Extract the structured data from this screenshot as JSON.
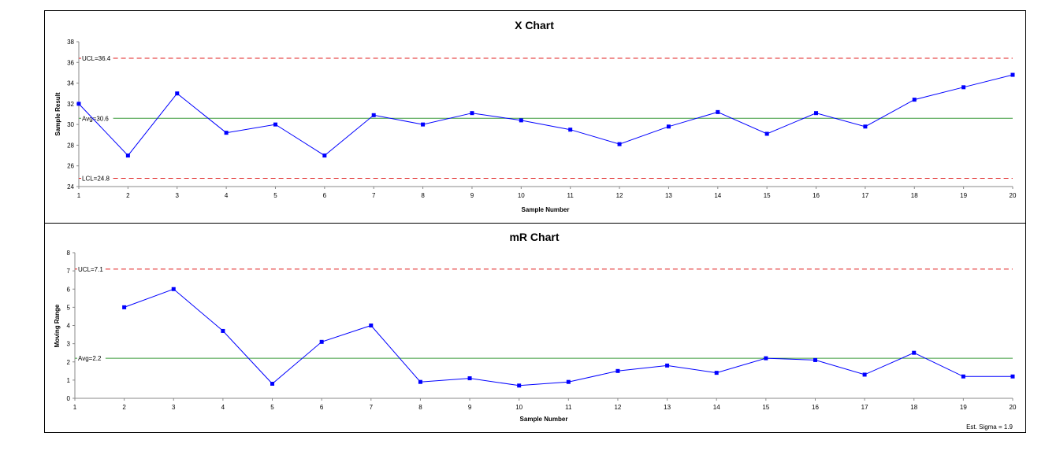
{
  "chart_data": [
    {
      "type": "line",
      "title": "X Chart",
      "xlabel": "Sample Number",
      "ylabel": "Sample Result",
      "x": [
        1,
        2,
        3,
        4,
        5,
        6,
        7,
        8,
        9,
        10,
        11,
        12,
        13,
        14,
        15,
        16,
        17,
        18,
        19,
        20
      ],
      "series": [
        {
          "values": [
            32.0,
            27.0,
            33.0,
            29.2,
            30.0,
            27.0,
            30.9,
            30.0,
            31.1,
            30.4,
            29.5,
            28.1,
            29.8,
            31.2,
            29.1,
            31.1,
            29.8,
            32.4,
            33.6,
            34.8
          ]
        }
      ],
      "ylim": [
        24,
        38
      ],
      "yticks": [
        24,
        26,
        28,
        30,
        32,
        34,
        36,
        38
      ],
      "xticks": [
        1,
        2,
        3,
        4,
        5,
        6,
        7,
        8,
        9,
        10,
        11,
        12,
        13,
        14,
        15,
        16,
        17,
        18,
        19,
        20
      ],
      "reference_lines": [
        {
          "label": "UCL=36.4",
          "value": 36.4,
          "style": "dashed",
          "color": "#e02020"
        },
        {
          "label": "Avg=30.6",
          "value": 30.6,
          "style": "solid",
          "color": "#3a9a3a"
        },
        {
          "label": "LCL=24.8",
          "value": 24.8,
          "style": "dashed",
          "color": "#e02020"
        }
      ],
      "series_color": "#0000ff",
      "grid": false
    },
    {
      "type": "line",
      "title": "mR Chart",
      "xlabel": "Sample Number",
      "ylabel": "Moving Range",
      "x": [
        2,
        3,
        4,
        5,
        6,
        7,
        8,
        9,
        10,
        11,
        12,
        13,
        14,
        15,
        16,
        17,
        18,
        19,
        20
      ],
      "series": [
        {
          "values": [
            5.0,
            6.0,
            3.7,
            0.8,
            3.1,
            4.0,
            0.9,
            1.1,
            0.7,
            0.9,
            1.5,
            1.8,
            1.4,
            2.2,
            2.1,
            1.3,
            2.5,
            1.2,
            1.2
          ]
        }
      ],
      "ylim": [
        0,
        8
      ],
      "yticks": [
        0,
        1,
        2,
        3,
        4,
        5,
        6,
        7,
        8
      ],
      "xticks": [
        1,
        2,
        3,
        4,
        5,
        6,
        7,
        8,
        9,
        10,
        11,
        12,
        13,
        14,
        15,
        16,
        17,
        18,
        19,
        20
      ],
      "reference_lines": [
        {
          "label": "UCL=7.1",
          "value": 7.1,
          "style": "dashed",
          "color": "#e02020"
        },
        {
          "label": "Avg=2.2",
          "value": 2.2,
          "style": "solid",
          "color": "#3a9a3a"
        }
      ],
      "series_color": "#0000ff",
      "grid": false,
      "note": "Est. Sigma = 1.9"
    }
  ]
}
